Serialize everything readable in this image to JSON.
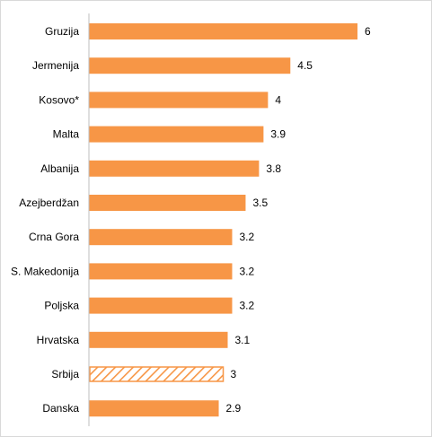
{
  "chart_data": {
    "type": "bar",
    "orientation": "horizontal",
    "categories": [
      "Gruzija",
      "Jermenija",
      "Kosovo*",
      "Malta",
      "Albanija",
      "Azejberdžan",
      "Crna Gora",
      "S. Makedonija",
      "Poljska",
      "Hrvatska",
      "Srbija",
      "Danska"
    ],
    "values": [
      6,
      4.5,
      4,
      3.9,
      3.8,
      3.5,
      3.2,
      3.2,
      3.2,
      3.1,
      3,
      2.9
    ],
    "value_labels": [
      "6",
      "4.5",
      "4",
      "3.9",
      "3.8",
      "3.5",
      "3.2",
      "3.2",
      "3.2",
      "3.1",
      "3",
      "2.9"
    ],
    "highlighted_category": "Srbija",
    "bar_color": "#F79646",
    "highlight_style": "diagonal-hatch",
    "xlim": [
      0,
      6.3
    ],
    "grid": false,
    "legend": "none",
    "title": "",
    "xlabel": "",
    "ylabel": ""
  }
}
